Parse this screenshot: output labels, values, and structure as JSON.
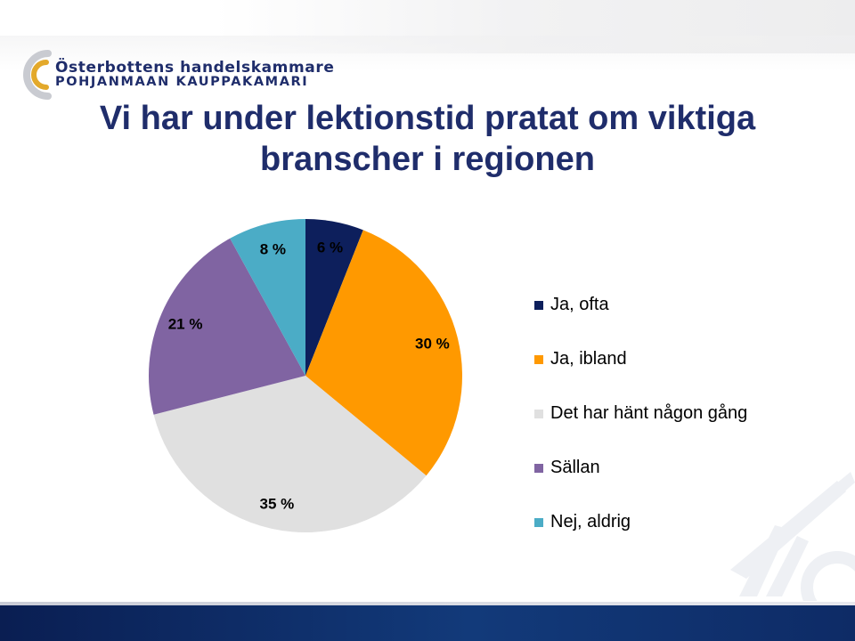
{
  "organization": {
    "name_sv": "Österbottens handelskammare",
    "name_fi": "POHJANMAAN KAUPPAKAMARI",
    "logo_colors": {
      "ring_outer": "#c9cbd1",
      "ring_inner": "#e3a92b"
    }
  },
  "slide": {
    "title_line1": "Vi har under lektionstid pratat om viktiga",
    "title_line2": "branscher i regionen"
  },
  "chart_data": {
    "type": "pie",
    "slices": [
      {
        "name": "Ja, ofta",
        "value": 6,
        "label": "6 %",
        "color": "#0d1f5c"
      },
      {
        "name": "Ja, ibland",
        "value": 30,
        "label": "30 %",
        "color": "#ff9900"
      },
      {
        "name": "Det har hänt någon gång",
        "value": 35,
        "label": "35 %",
        "color": "#e0e0e0"
      },
      {
        "name": "Sällan",
        "value": 21,
        "label": "21 %",
        "color": "#8064a2"
      },
      {
        "name": "Nej, aldrig",
        "value": 8,
        "label": "8 %",
        "color": "#4bacc6"
      }
    ],
    "start_angle": "12 o'clock",
    "direction": "clockwise",
    "legend_position": "right"
  },
  "decor": {
    "title_color": "#1f2d6b",
    "bottom_bar_color": "#0a1e52"
  }
}
